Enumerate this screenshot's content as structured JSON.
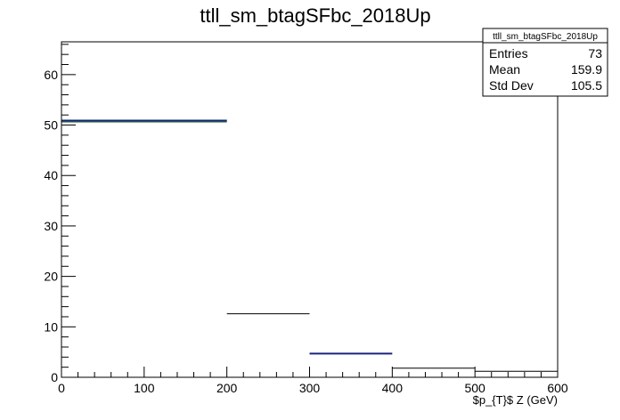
{
  "chart_data": {
    "type": "histogram",
    "title": "ttll_sm_btagSFbc_2018Up",
    "xlabel": "$p_{T}$ Z (GeV)",
    "ylabel": "",
    "xlim": [
      0,
      600
    ],
    "ylim": [
      0,
      66.5
    ],
    "xticks": [
      0,
      100,
      200,
      300,
      400,
      500,
      600
    ],
    "yticks": [
      0,
      10,
      20,
      30,
      40,
      50,
      60
    ],
    "grid": false,
    "bins": [
      {
        "low": 0,
        "high": 200,
        "value": 50.7,
        "color": "#2e7d32"
      },
      {
        "low": 0,
        "high": 200,
        "value": 50.9,
        "color": "#1a237e"
      },
      {
        "low": 200,
        "high": 300,
        "value": 12.6,
        "color": "#000000"
      },
      {
        "low": 300,
        "high": 400,
        "value": 4.7,
        "color": "#1a237e"
      },
      {
        "low": 400,
        "high": 500,
        "value": 1.8,
        "color": "#000000"
      },
      {
        "low": 500,
        "high": 600,
        "value": 1.2,
        "color": "#000000"
      }
    ],
    "stats": {
      "title": "ttll_sm_btagSFbc_2018Up",
      "entries_label": "Entries",
      "entries": "73",
      "mean_label": "Mean",
      "mean": "159.9",
      "stddev_label": "Std Dev",
      "stddev": "105.5"
    }
  }
}
